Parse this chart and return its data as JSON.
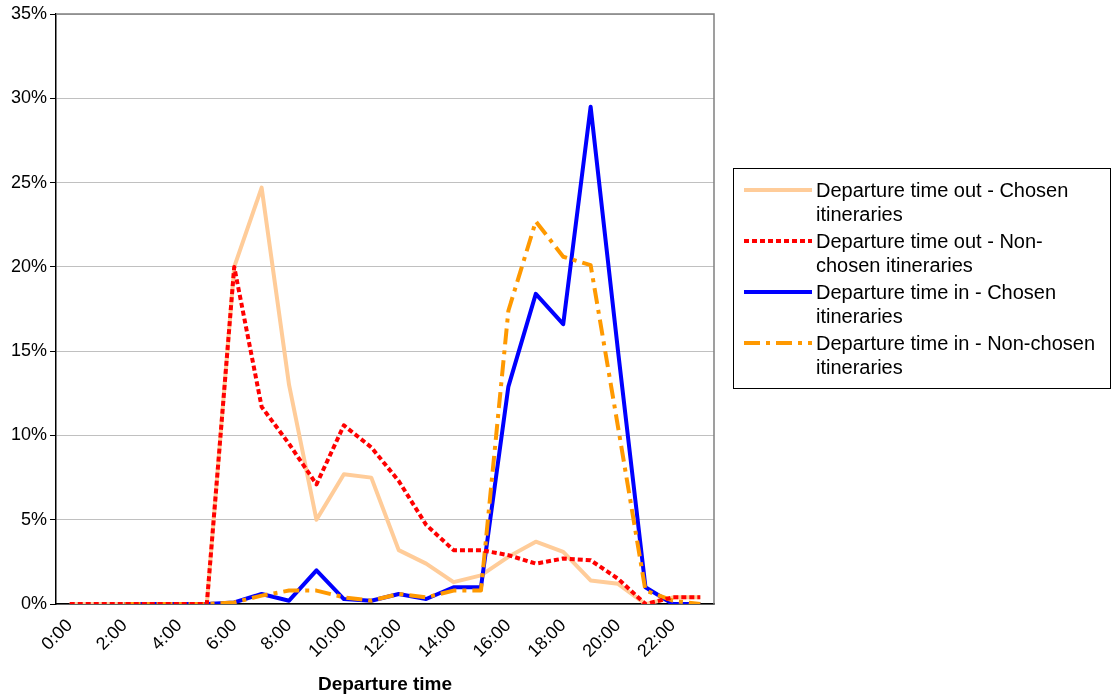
{
  "chart_data": {
    "type": "line",
    "xlabel": "Departure time",
    "categories": [
      "0:00",
      null,
      "2:00",
      null,
      "4:00",
      null,
      "6:00",
      null,
      "8:00",
      null,
      "10:00",
      null,
      "12:00",
      null,
      "14:00",
      null,
      "16:00",
      null,
      "18:00",
      null,
      "20:00",
      null,
      "22:00",
      null
    ],
    "series": [
      {
        "name": "Departure time out - Chosen itineraries",
        "color": "#ffcc99",
        "line_style": "solid",
        "values": [
          0,
          0,
          0,
          0,
          0,
          0,
          20.0,
          24.7,
          13.0,
          5.0,
          7.7,
          7.5,
          3.2,
          2.4,
          1.3,
          1.7,
          2.8,
          3.7,
          3.1,
          1.4,
          1.2,
          0,
          0.4,
          0.4
        ]
      },
      {
        "name": "Departure time out - Non-chosen itineraries",
        "color": "#ff0000",
        "line_style": "dotted",
        "values": [
          0,
          0,
          0,
          0,
          0,
          0,
          20.0,
          11.7,
          9.5,
          7.1,
          10.6,
          9.3,
          7.3,
          4.7,
          3.2,
          3.2,
          2.9,
          2.4,
          2.7,
          2.6,
          1.5,
          0,
          0.4,
          0.4
        ]
      },
      {
        "name": "Departure time in - Chosen itineraries",
        "color": "#0000ff",
        "line_style": "solid",
        "values": [
          null,
          null,
          0,
          0,
          0,
          0,
          0.1,
          0.6,
          0.2,
          2.0,
          0.3,
          0.2,
          0.6,
          0.3,
          1.0,
          1.0,
          12.9,
          18.4,
          16.6,
          29.5,
          15.0,
          1.0,
          0,
          0
        ]
      },
      {
        "name": "Departure time in - Non-chosen itineraries",
        "color": "#ff9900",
        "line_style": "dashed",
        "values": [
          null,
          null,
          0,
          0,
          0,
          0,
          0.1,
          0.5,
          0.8,
          0.8,
          0.4,
          0.2,
          0.6,
          0.4,
          0.8,
          0.8,
          17.4,
          22.7,
          20.6,
          20.1,
          10.5,
          0.8,
          0.2,
          0
        ]
      }
    ],
    "ylim": [
      0,
      35
    ],
    "yticks": [
      {
        "value": 0,
        "label": "0%"
      },
      {
        "value": 5,
        "label": "5%"
      },
      {
        "value": 10,
        "label": "10%"
      },
      {
        "value": 15,
        "label": "15%"
      },
      {
        "value": 20,
        "label": "20%"
      },
      {
        "value": 25,
        "label": "25%"
      },
      {
        "value": 30,
        "label": "30%"
      },
      {
        "value": 35,
        "label": "35%"
      }
    ],
    "grid": "y",
    "legend": "right",
    "marker": "none"
  }
}
